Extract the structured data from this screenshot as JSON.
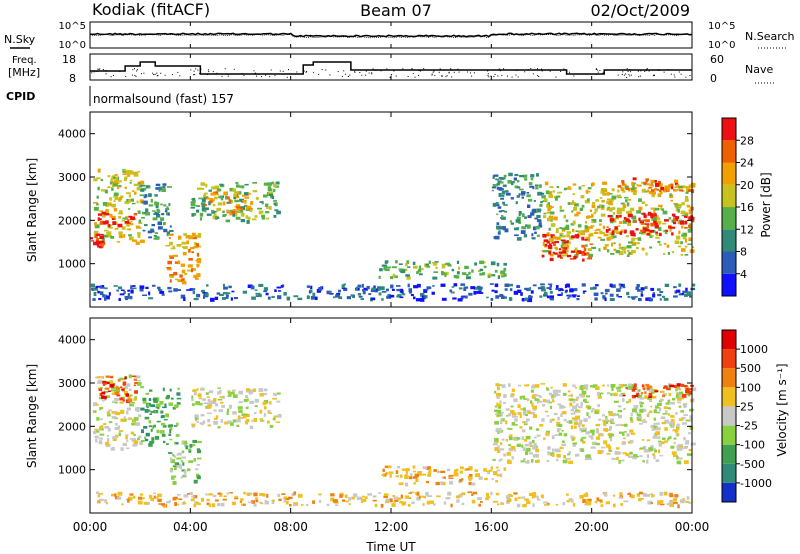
{
  "header": {
    "station": "Kodiak (fitACF)",
    "beam": "Beam 07",
    "date": "02/Oct/2009"
  },
  "noise_panel": {
    "left_label": "N.Sky",
    "right_label": "N.Search",
    "left_ticks": [
      "10^5",
      "10^0"
    ],
    "right_ticks": [
      "10^5",
      "10^0"
    ]
  },
  "freq_panel": {
    "left_label_1": "Freq.",
    "left_label_2": "[MHz]",
    "right_label": "Nave",
    "left_ticks": [
      "18",
      "8"
    ],
    "right_ticks": [
      "60",
      "0"
    ]
  },
  "cpid": {
    "label": "CPID",
    "value": "normalsound (fast) 157"
  },
  "time_axis": {
    "label": "Time UT",
    "ticks": [
      "00:00",
      "04:00",
      "08:00",
      "12:00",
      "16:00",
      "20:00",
      "00:00"
    ]
  },
  "chart_data": [
    {
      "type": "heatmap",
      "name": "power",
      "ylabel": "Slant Range [km]",
      "yticks": [
        "1000",
        "2000",
        "3000",
        "4000"
      ],
      "ylim": [
        0,
        4500
      ],
      "xlim_hours": [
        0,
        24
      ],
      "colorbar_label": "Power [dB]",
      "colorbar_ticks": [
        "4",
        "8",
        "12",
        "16",
        "20",
        "24",
        "28"
      ],
      "colorbar_colors": [
        "#1010ff",
        "#2a5cb8",
        "#2f8a78",
        "#56b04a",
        "#c8c21e",
        "#f0a000",
        "#f06000",
        "#ee1010"
      ],
      "regions": [
        {
          "t0": 0.1,
          "t1": 2.0,
          "r0": 1500,
          "r1": 3200,
          "c": 4
        },
        {
          "t0": 0.3,
          "t1": 1.8,
          "r0": 1900,
          "r1": 2200,
          "c": 7
        },
        {
          "t0": 0.0,
          "t1": 0.5,
          "r0": 1400,
          "r1": 1700,
          "c": 7
        },
        {
          "t0": 2.0,
          "t1": 3.2,
          "r0": 1600,
          "r1": 2900,
          "c": 2
        },
        {
          "t0": 3.0,
          "t1": 4.3,
          "r0": 600,
          "r1": 1800,
          "c": 5
        },
        {
          "t0": 4.0,
          "t1": 7.5,
          "r0": 2000,
          "r1": 2900,
          "c": 3
        },
        {
          "t0": 4.5,
          "t1": 6.5,
          "r0": 2200,
          "r1": 2700,
          "c": 5
        },
        {
          "t0": 11.5,
          "t1": 16.5,
          "r0": 700,
          "r1": 1100,
          "c": 3
        },
        {
          "t0": 16.0,
          "t1": 18.0,
          "r0": 1600,
          "r1": 3100,
          "c": 2
        },
        {
          "t0": 18.0,
          "t1": 24.0,
          "r0": 1200,
          "r1": 2900,
          "c": 4
        },
        {
          "t0": 18.0,
          "t1": 20.0,
          "r0": 1100,
          "r1": 1700,
          "c": 7
        },
        {
          "t0": 20.5,
          "t1": 24.0,
          "r0": 1700,
          "r1": 2200,
          "c": 7
        },
        {
          "t0": 21.0,
          "t1": 24.0,
          "r0": 2700,
          "r1": 3000,
          "c": 6
        },
        {
          "t0": 0.0,
          "t1": 24.0,
          "r0": 200,
          "r1": 550,
          "c": 1
        }
      ]
    },
    {
      "type": "heatmap",
      "name": "velocity",
      "ylabel": "Slant Range [km]",
      "yticks": [
        "1000",
        "2000",
        "3000",
        "4000"
      ],
      "ylim": [
        0,
        4500
      ],
      "xlim_hours": [
        0,
        24
      ],
      "colorbar_label": "Velocity [m s⁻¹]",
      "colorbar_ticks": [
        "1000",
        "500",
        "100",
        "25",
        "-25",
        "-100",
        "-500",
        "-1000"
      ],
      "colorbar_colors": [
        "#1530c8",
        "#2f8a78",
        "#3ea050",
        "#88d040",
        "#c8c8c8",
        "#f0c020",
        "#f08010",
        "#f04010",
        "#e00000"
      ],
      "regions": [
        {
          "t0": 0.1,
          "t1": 2.0,
          "r0": 1500,
          "r1": 3200,
          "c": 4
        },
        {
          "t0": 0.3,
          "t1": 1.8,
          "r0": 2600,
          "r1": 3200,
          "c": 7
        },
        {
          "t0": 2.0,
          "t1": 3.5,
          "r0": 1600,
          "r1": 2900,
          "c": 2
        },
        {
          "t0": 3.0,
          "t1": 4.3,
          "r0": 700,
          "r1": 1700,
          "c": 3
        },
        {
          "t0": 4.0,
          "t1": 7.5,
          "r0": 2000,
          "r1": 2900,
          "c": 4
        },
        {
          "t0": 11.5,
          "t1": 16.5,
          "r0": 700,
          "r1": 1100,
          "c": 5
        },
        {
          "t0": 16.0,
          "t1": 24.0,
          "r0": 1200,
          "r1": 3000,
          "c": 4
        },
        {
          "t0": 21.0,
          "t1": 24.0,
          "r0": 2700,
          "r1": 3000,
          "c": 7
        },
        {
          "t0": 0.0,
          "t1": 24.0,
          "r0": 200,
          "r1": 500,
          "c": 5
        }
      ]
    }
  ]
}
